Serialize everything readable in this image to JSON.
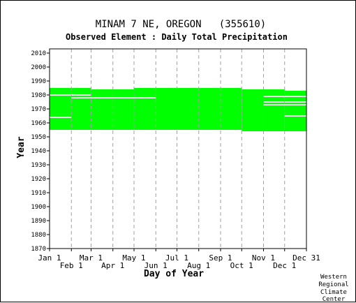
{
  "chart_data": {
    "type": "heatmap",
    "title": "MINAM 7 NE, OREGON   (355610)",
    "subtitle": "Observed Element : Daily Total Precipitation",
    "xlabel": "Day of Year",
    "ylabel": "Year",
    "xlim": [
      1,
      366
    ],
    "ylim": [
      1870,
      2012
    ],
    "y_ticks": [
      1870,
      1880,
      1890,
      1900,
      1910,
      1920,
      1930,
      1940,
      1950,
      1960,
      1970,
      1980,
      1990,
      2000,
      2010
    ],
    "x_ticks_top_row": [
      {
        "label": "Jan 1",
        "day": 1
      },
      {
        "label": "Mar 1",
        "day": 60
      },
      {
        "label": "May 1",
        "day": 121
      },
      {
        "label": "Jul 1",
        "day": 182
      },
      {
        "label": "Sep 1",
        "day": 244
      },
      {
        "label": "Nov 1",
        "day": 305
      },
      {
        "label": "Dec 31",
        "day": 366
      }
    ],
    "x_ticks_bottom_row": [
      {
        "label": "Feb 1",
        "day": 32
      },
      {
        "label": "Apr 1",
        "day": 91
      },
      {
        "label": "Jun 1",
        "day": 152
      },
      {
        "label": "Aug 1",
        "day": 213
      },
      {
        "label": "Oct 1",
        "day": 274
      },
      {
        "label": "Dec 1",
        "day": 335
      }
    ],
    "grid": true,
    "data_color": "#00ff00",
    "observed_blocks": [
      {
        "day_start": 1,
        "day_end": 60,
        "year_start": 1955,
        "year_end": 1985
      },
      {
        "day_start": 60,
        "day_end": 121,
        "year_start": 1955,
        "year_end": 1984
      },
      {
        "day_start": 121,
        "day_end": 182,
        "year_start": 1955,
        "year_end": 1985
      },
      {
        "day_start": 182,
        "day_end": 274,
        "year_start": 1955,
        "year_end": 1985
      },
      {
        "day_start": 274,
        "day_end": 335,
        "year_start": 1954,
        "year_end": 1984
      },
      {
        "day_start": 335,
        "day_end": 366,
        "year_start": 1954,
        "year_end": 1983
      }
    ],
    "missing_gaps": [
      {
        "day_start": 1,
        "day_end": 32,
        "year": 1964
      },
      {
        "day_start": 1,
        "day_end": 60,
        "year": 1980
      },
      {
        "day_start": 32,
        "day_end": 60,
        "year": 1978
      },
      {
        "day_start": 60,
        "day_end": 152,
        "year": 1978
      },
      {
        "day_start": 305,
        "day_end": 366,
        "year": 1979
      },
      {
        "day_start": 305,
        "day_end": 366,
        "year": 1975
      },
      {
        "day_start": 305,
        "day_end": 366,
        "year": 1973
      },
      {
        "day_start": 335,
        "day_end": 366,
        "year": 1965
      }
    ]
  },
  "credit": [
    "Western",
    "Regional",
    "Climate",
    "Center"
  ]
}
